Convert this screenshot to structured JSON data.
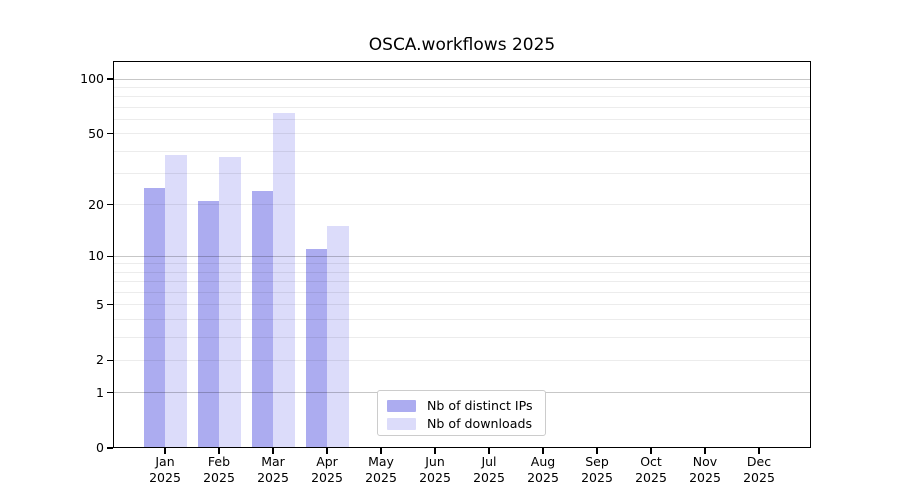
{
  "title": "OSCA.workflows 2025",
  "chart_data": {
    "type": "bar",
    "title": "OSCA.workflows 2025",
    "year_label": "2025",
    "categories": [
      "Jan",
      "Feb",
      "Mar",
      "Apr",
      "May",
      "Jun",
      "Jul",
      "Aug",
      "Sep",
      "Oct",
      "Nov",
      "Dec"
    ],
    "series": [
      {
        "name": "Nb of distinct IPs",
        "color": "#acacf0",
        "values": [
          25,
          21,
          24,
          11,
          0,
          0,
          0,
          0,
          0,
          0,
          0,
          0
        ]
      },
      {
        "name": "Nb of downloads",
        "color": "#dcdcfa",
        "values": [
          38,
          37,
          65,
          15,
          0,
          0,
          0,
          0,
          0,
          0,
          0,
          0
        ]
      }
    ],
    "y_axis": {
      "scale": "log10(value+1)",
      "tick_labels": [
        100,
        50,
        20,
        10,
        5,
        2,
        1,
        0
      ],
      "gridlines_minor": [
        2,
        3,
        4,
        5,
        6,
        7,
        8,
        9,
        20,
        30,
        40,
        50,
        60,
        70,
        80,
        90
      ],
      "gridlines_major": [
        1,
        10,
        100
      ],
      "ylim": [
        0,
        112
      ]
    },
    "x_axis": {
      "tick_label_lines": 2
    },
    "legend": {
      "position": "bottom-center",
      "entries": [
        "Nb of distinct IPs",
        "Nb of downloads"
      ]
    },
    "grid": true
  }
}
